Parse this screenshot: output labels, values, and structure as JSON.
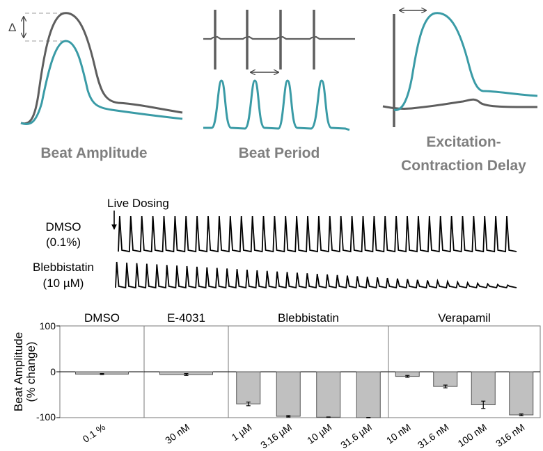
{
  "top_panels": {
    "beat_amplitude": {
      "title": "Beat Amplitude",
      "delta_symbol": "Δ"
    },
    "beat_period": {
      "title": "Beat Period"
    },
    "ec_delay": {
      "title_line1": "Excitation-",
      "title_line2": "Contraction Delay"
    }
  },
  "traces": {
    "live_dosing_label": "Live Dosing",
    "rows": [
      {
        "name_line1": "DMSO",
        "name_line2": "(0.1%)",
        "beats": 36,
        "decay": 0.0
      },
      {
        "name_line1": "Blebbistatin",
        "name_line2": "(10 µM)",
        "beats": 40,
        "decay": 0.9
      }
    ]
  },
  "colors": {
    "teal": "#3a9ba6",
    "dark_gray": "#5e5e5e",
    "bar_fill": "#c0c0c0"
  },
  "chart_data": {
    "type": "bar",
    "ylabel_line1": "Beat Amplitude",
    "ylabel_line2": "(% change)",
    "ylim": [
      -100,
      100
    ],
    "yticks": [
      "100",
      "0",
      "-100"
    ],
    "groups": [
      {
        "title": "DMSO",
        "categories": [
          "0.1 %"
        ],
        "values": [
          -5
        ],
        "errors": [
          1
        ]
      },
      {
        "title": "E-4031",
        "categories": [
          "30 nM"
        ],
        "values": [
          -6
        ],
        "errors": [
          2
        ]
      },
      {
        "title": "Blebbistatin",
        "categories": [
          "1 µM",
          "3.16 µM",
          "10 µM",
          "31.6 µM"
        ],
        "values": [
          -70,
          -97,
          -99,
          -100
        ],
        "errors": [
          4,
          1.5,
          0.5,
          0.5
        ]
      },
      {
        "title": "Verapamil",
        "categories": [
          "10 nM",
          "31.6 nM",
          "100 nM",
          "316 nM"
        ],
        "values": [
          -10,
          -32,
          -72,
          -94
        ],
        "errors": [
          2,
          3,
          8,
          2
        ]
      }
    ]
  }
}
